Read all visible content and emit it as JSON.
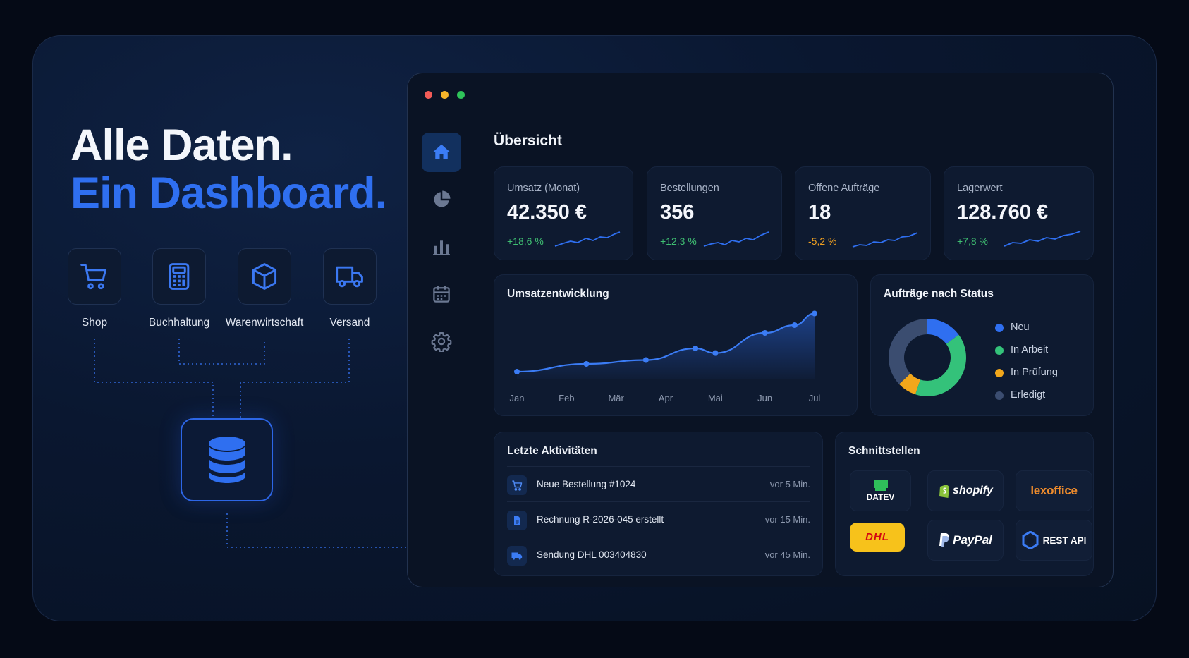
{
  "hero": {
    "line1": "Alle Daten.",
    "line2": "Ein Dashboard."
  },
  "sources": [
    {
      "label": "Shop",
      "icon": "cart-icon"
    },
    {
      "label": "Buchhaltung",
      "icon": "calculator-icon"
    },
    {
      "label": "Warenwirtschaft",
      "icon": "box-icon"
    },
    {
      "label": "Versand",
      "icon": "truck-icon"
    }
  ],
  "hub": {
    "icon": "database-icon"
  },
  "colors": {
    "accent": "#2f6ff0",
    "positive": "#3fbf72",
    "negative": "#f0a020",
    "neutral": "#4a5a78"
  },
  "window": {
    "nav": [
      {
        "icon": "home-icon",
        "active": true
      },
      {
        "icon": "pie-chart-icon",
        "active": false
      },
      {
        "icon": "bar-chart-icon",
        "active": false
      },
      {
        "icon": "calendar-icon",
        "active": false
      },
      {
        "icon": "gear-icon",
        "active": false
      }
    ],
    "title": "Übersicht"
  },
  "kpis": [
    {
      "label": "Umsatz (Monat)",
      "value": "42.350 €",
      "change": "+18,6 %",
      "trend": "up"
    },
    {
      "label": "Bestellungen",
      "value": "356",
      "change": "+12,3 %",
      "trend": "up"
    },
    {
      "label": "Offene Aufträge",
      "value": "18",
      "change": "-5,2 %",
      "trend": "down"
    },
    {
      "label": "Lagerwert",
      "value": "128.760 €",
      "change": "+7,8 %",
      "trend": "up"
    }
  ],
  "revenue_chart": {
    "title": "Umsatzentwicklung"
  },
  "status_chart": {
    "title": "Aufträge nach Status"
  },
  "chart_data": [
    {
      "type": "area",
      "title": "Umsatzentwicklung",
      "categories": [
        "Jan",
        "Feb",
        "Mär",
        "Apr",
        "Mai",
        "Jun",
        "Jul"
      ],
      "x": [
        0,
        1.4,
        2.6,
        3.6,
        4.0,
        5.0,
        5.6,
        6.0
      ],
      "values": [
        10,
        20,
        25,
        40,
        34,
        60,
        70,
        85
      ],
      "ylim": [
        0,
        100
      ],
      "grid": false
    },
    {
      "type": "pie",
      "title": "Aufträge nach Status",
      "labels": [
        "Neu",
        "In Arbeit",
        "In Prüfung",
        "Erledigt"
      ],
      "values": [
        15,
        40,
        8,
        37
      ],
      "colors": [
        "#2f6ff0",
        "#34c27a",
        "#f2a71b",
        "#3b4d70"
      ],
      "legend": "right"
    }
  ],
  "activities": {
    "title": "Letzte Aktivitäten",
    "items": [
      {
        "icon": "cart-icon",
        "text": "Neue Bestellung #1024",
        "time": "vor 5 Min."
      },
      {
        "icon": "document-icon",
        "text": "Rechnung R-2026-045 erstellt",
        "time": "vor 15 Min."
      },
      {
        "icon": "truck-icon",
        "text": "Sendung DHL 003404830",
        "time": "vor 45 Min."
      }
    ]
  },
  "integrations": {
    "title": "Schnittstellen",
    "items": [
      {
        "name": "DATEV",
        "icon": "datev-logo"
      },
      {
        "name": "shopify",
        "icon": "shopify-logo"
      },
      {
        "name": "lexoffice",
        "icon": "lexoffice-logo"
      },
      {
        "name": "DHL",
        "icon": "dhl-logo"
      },
      {
        "name": "PayPal",
        "icon": "paypal-logo"
      },
      {
        "name": "REST API",
        "icon": "api-icon"
      }
    ]
  }
}
